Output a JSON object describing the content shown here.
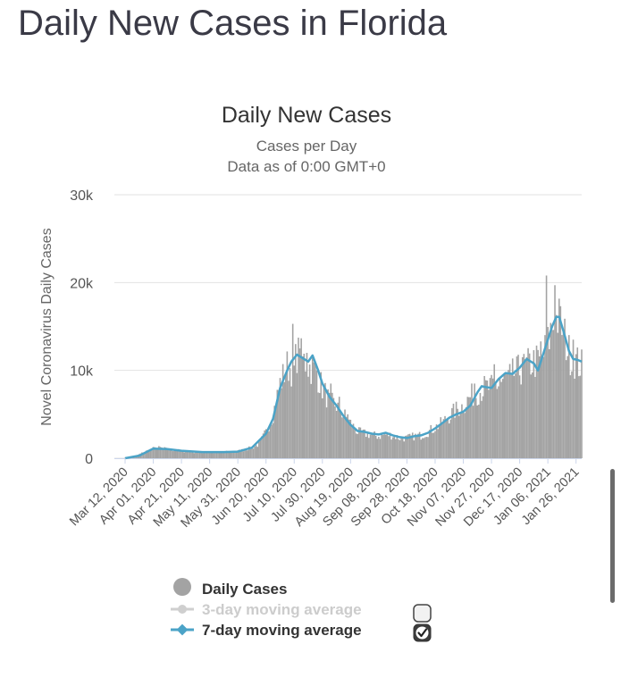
{
  "page": {
    "title": "Daily New Cases in Florida"
  },
  "colors": {
    "bar": "#a3a3a3",
    "line7": "#4ba3c7",
    "line3": "#cfcfcf",
    "grid": "#e2e2e2",
    "text": "#555555",
    "title": "#333333"
  },
  "chart_data": {
    "type": "bar",
    "title": "Daily New Cases",
    "subtitle_line1": "Cases per Day",
    "subtitle_line2": "Data as of 0:00 GMT+0",
    "ylabel": "Novel Coronavirus Daily Cases",
    "xlabel": "",
    "ylim": [
      0,
      30000
    ],
    "yticks": [
      {
        "value": 0,
        "label": "0"
      },
      {
        "value": 10000,
        "label": "10k"
      },
      {
        "value": 20000,
        "label": "20k"
      },
      {
        "value": 30000,
        "label": "30k"
      }
    ],
    "x_ticks": [
      {
        "label": "Mar 12, 2020",
        "day": 0
      },
      {
        "label": "Apr 01, 2020",
        "day": 20
      },
      {
        "label": "Apr 21, 2020",
        "day": 40
      },
      {
        "label": "May 11, 2020",
        "day": 60
      },
      {
        "label": "May 31, 2020",
        "day": 80
      },
      {
        "label": "Jun 20, 2020",
        "day": 100
      },
      {
        "label": "Jul 10, 2020",
        "day": 120
      },
      {
        "label": "Jul 30, 2020",
        "day": 140
      },
      {
        "label": "Aug 19, 2020",
        "day": 160
      },
      {
        "label": "Sep 08, 2020",
        "day": 180
      },
      {
        "label": "Sep 28, 2020",
        "day": 200
      },
      {
        "label": "Oct 18, 2020",
        "day": 220
      },
      {
        "label": "Nov 07, 2020",
        "day": 240
      },
      {
        "label": "Nov 27, 2020",
        "day": 260
      },
      {
        "label": "Dec 17, 2020",
        "day": 280
      },
      {
        "label": "Jan 06, 2021",
        "day": 300
      },
      {
        "label": "Jan 26, 2021",
        "day": 320
      }
    ],
    "day_count": 324,
    "daily_cases_anchors": [
      [
        0,
        50
      ],
      [
        8,
        300
      ],
      [
        15,
        800
      ],
      [
        20,
        1100
      ],
      [
        25,
        1200
      ],
      [
        30,
        1000
      ],
      [
        40,
        850
      ],
      [
        50,
        700
      ],
      [
        60,
        650
      ],
      [
        70,
        700
      ],
      [
        80,
        800
      ],
      [
        90,
        1200
      ],
      [
        95,
        1600
      ],
      [
        100,
        3000
      ],
      [
        105,
        5000
      ],
      [
        110,
        8500
      ],
      [
        115,
        10500
      ],
      [
        120,
        10000
      ],
      [
        122,
        12000
      ],
      [
        125,
        11500
      ],
      [
        130,
        10500
      ],
      [
        135,
        10000
      ],
      [
        140,
        8000
      ],
      [
        145,
        6500
      ],
      [
        150,
        6000
      ],
      [
        155,
        5000
      ],
      [
        160,
        4000
      ],
      [
        165,
        3000
      ],
      [
        170,
        2800
      ],
      [
        180,
        2500
      ],
      [
        185,
        2700
      ],
      [
        190,
        2600
      ],
      [
        195,
        2300
      ],
      [
        200,
        2300
      ],
      [
        205,
        2500
      ],
      [
        210,
        2600
      ],
      [
        215,
        3000
      ],
      [
        220,
        3500
      ],
      [
        225,
        4000
      ],
      [
        230,
        4800
      ],
      [
        235,
        5500
      ],
      [
        240,
        6000
      ],
      [
        245,
        7000
      ],
      [
        250,
        7500
      ],
      [
        255,
        8000
      ],
      [
        260,
        8000
      ],
      [
        265,
        8500
      ],
      [
        270,
        9000
      ],
      [
        275,
        9500
      ],
      [
        280,
        10000
      ],
      [
        285,
        10500
      ],
      [
        290,
        11000
      ],
      [
        295,
        11000
      ],
      [
        300,
        13000
      ],
      [
        303,
        15000
      ],
      [
        307,
        16000
      ],
      [
        310,
        15000
      ],
      [
        315,
        12000
      ],
      [
        320,
        11000
      ],
      [
        324,
        10500
      ]
    ],
    "daily_cases_spikes": [
      [
        119,
        15300
      ],
      [
        121,
        13000
      ],
      [
        124,
        12500
      ],
      [
        129,
        12000
      ],
      [
        133,
        11500
      ],
      [
        136,
        10000
      ],
      [
        146,
        8500
      ],
      [
        152,
        7000
      ],
      [
        158,
        5000
      ],
      [
        248,
        8500
      ],
      [
        262,
        10700
      ],
      [
        266,
        9000
      ],
      [
        274,
        9500
      ],
      [
        282,
        11500
      ],
      [
        290,
        12300
      ],
      [
        295,
        13300
      ],
      [
        299,
        20800
      ],
      [
        305,
        19700
      ],
      [
        311,
        14500
      ],
      [
        318,
        13500
      ]
    ],
    "ma7_anchors": [
      [
        0,
        0
      ],
      [
        10,
        300
      ],
      [
        20,
        1100
      ],
      [
        30,
        1050
      ],
      [
        40,
        850
      ],
      [
        55,
        700
      ],
      [
        70,
        700
      ],
      [
        80,
        750
      ],
      [
        90,
        1200
      ],
      [
        100,
        2800
      ],
      [
        105,
        4500
      ],
      [
        110,
        8000
      ],
      [
        115,
        10000
      ],
      [
        118,
        11000
      ],
      [
        122,
        11800
      ],
      [
        126,
        11400
      ],
      [
        130,
        11000
      ],
      [
        133,
        11700
      ],
      [
        137,
        10000
      ],
      [
        140,
        8500
      ],
      [
        145,
        7000
      ],
      [
        150,
        6000
      ],
      [
        155,
        4800
      ],
      [
        160,
        3800
      ],
      [
        165,
        3100
      ],
      [
        170,
        3000
      ],
      [
        175,
        2800
      ],
      [
        180,
        2700
      ],
      [
        185,
        2900
      ],
      [
        190,
        2600
      ],
      [
        195,
        2400
      ],
      [
        200,
        2300
      ],
      [
        205,
        2500
      ],
      [
        210,
        2600
      ],
      [
        215,
        2900
      ],
      [
        220,
        3400
      ],
      [
        225,
        4000
      ],
      [
        230,
        4600
      ],
      [
        235,
        5000
      ],
      [
        240,
        5300
      ],
      [
        245,
        6000
      ],
      [
        250,
        7500
      ],
      [
        253,
        8200
      ],
      [
        256,
        8100
      ],
      [
        260,
        8000
      ],
      [
        265,
        9000
      ],
      [
        270,
        9700
      ],
      [
        275,
        9600
      ],
      [
        280,
        10300
      ],
      [
        285,
        11300
      ],
      [
        290,
        10800
      ],
      [
        293,
        10000
      ],
      [
        296,
        11500
      ],
      [
        300,
        13500
      ],
      [
        303,
        15000
      ],
      [
        306,
        16100
      ],
      [
        308,
        16100
      ],
      [
        311,
        14500
      ],
      [
        315,
        12200
      ],
      [
        318,
        11300
      ],
      [
        321,
        11200
      ],
      [
        324,
        11000
      ]
    ],
    "legend": [
      {
        "name": "Daily Cases",
        "enabled": true
      },
      {
        "name": "3-day moving average",
        "enabled": false
      },
      {
        "name": "7-day moving average",
        "enabled": true
      }
    ]
  }
}
